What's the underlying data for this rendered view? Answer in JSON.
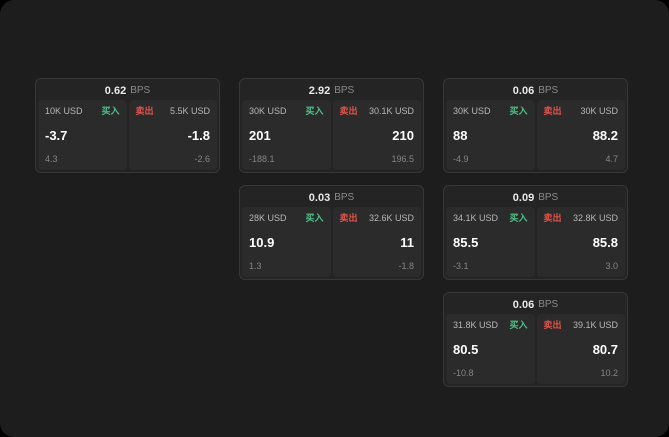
{
  "labels": {
    "bps": "BPS",
    "buy": "买入",
    "sell": "卖出"
  },
  "colors": {
    "buy_green": "#4cc38a",
    "sell_red": "#e5534b",
    "background": "#1d1d1d",
    "card_background": "#242424",
    "panel_background": "#2b2b2b"
  },
  "cards": [
    {
      "bps": "0.62",
      "buy": {
        "notional": "10K USD",
        "value": "-3.7",
        "sub": "4.3"
      },
      "sell": {
        "notional": "5.5K USD",
        "value": "-1.8",
        "sub": "-2.6"
      }
    },
    {
      "bps": "2.92",
      "buy": {
        "notional": "30K USD",
        "value": "201",
        "sub": "-188.1"
      },
      "sell": {
        "notional": "30.1K USD",
        "value": "210",
        "sub": "196.5"
      }
    },
    {
      "bps": "0.06",
      "buy": {
        "notional": "30K USD",
        "value": "88",
        "sub": "-4.9"
      },
      "sell": {
        "notional": "30K USD",
        "value": "88.2",
        "sub": "4.7"
      }
    },
    {
      "bps": "0.03",
      "buy": {
        "notional": "28K USD",
        "value": "10.9",
        "sub": "1.3"
      },
      "sell": {
        "notional": "32.6K USD",
        "value": "11",
        "sub": "-1.8"
      }
    },
    {
      "bps": "0.09",
      "buy": {
        "notional": "34.1K USD",
        "value": "85.5",
        "sub": "-3.1"
      },
      "sell": {
        "notional": "32.8K USD",
        "value": "85.8",
        "sub": "3.0"
      }
    },
    {
      "bps": "0.06",
      "buy": {
        "notional": "31.8K USD",
        "value": "80.5",
        "sub": "-10.8"
      },
      "sell": {
        "notional": "39.1K USD",
        "value": "80.7",
        "sub": "10.2"
      }
    }
  ]
}
